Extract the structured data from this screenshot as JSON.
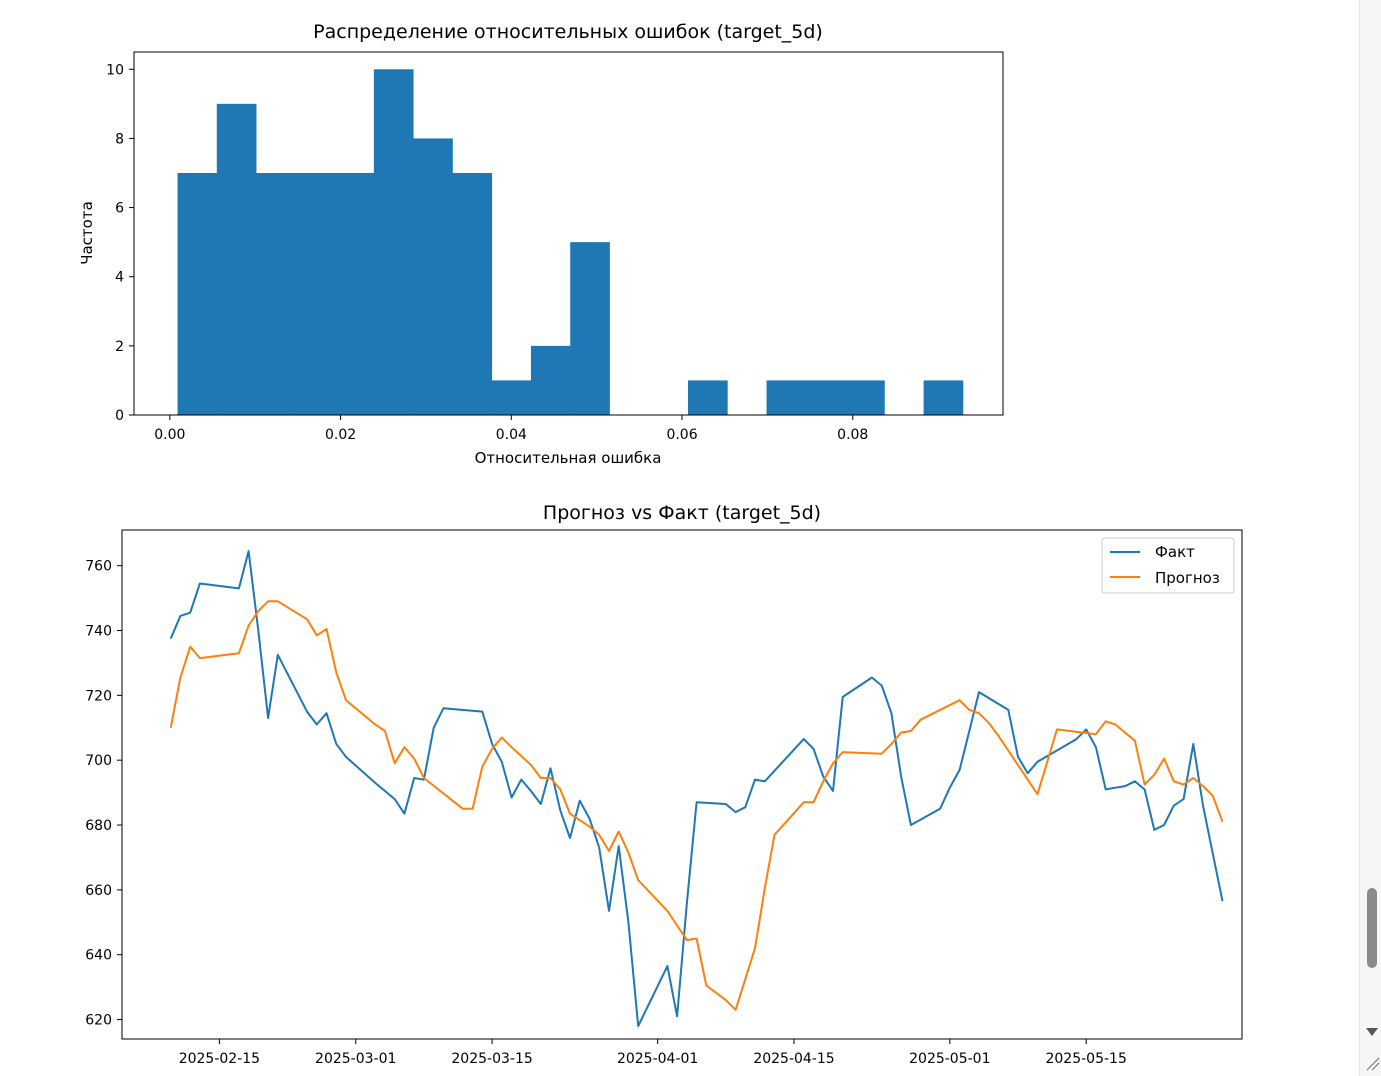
{
  "chart_data": [
    {
      "type": "bar",
      "title": "Распределение относительных ошибок (target_5d)",
      "xlabel": "Относительная ошибка",
      "ylabel": "Частота",
      "xlim": [
        -0.0042,
        0.0976
      ],
      "ylim": [
        0,
        10.5
      ],
      "xticks": [
        "0.00",
        "0.02",
        "0.04",
        "0.06",
        "0.08"
      ],
      "xtick_values": [
        0.0,
        0.02,
        0.04,
        0.06,
        0.08
      ],
      "yticks": [
        "0",
        "2",
        "4",
        "6",
        "8",
        "10"
      ],
      "ytick_values": [
        0,
        2,
        4,
        6,
        8,
        10
      ],
      "color": "#1f77b4",
      "bin_edges": [
        0.0009,
        0.0055,
        0.0101,
        0.0147,
        0.0193,
        0.0239,
        0.0285,
        0.0331,
        0.0377,
        0.0423,
        0.0469,
        0.0515,
        0.0561,
        0.0607,
        0.0653,
        0.0699,
        0.0745,
        0.0791,
        0.0837,
        0.0883,
        0.0929
      ],
      "counts": [
        7,
        9,
        7,
        7,
        7,
        10,
        8,
        7,
        1,
        2,
        5,
        0,
        0,
        1,
        0,
        1,
        1,
        1,
        0,
        1
      ],
      "grid": false
    },
    {
      "type": "line",
      "title": "Прогноз vs Факт (target_5d)",
      "xlabel": "",
      "ylabel": "",
      "xlim": [
        "2025-02-05",
        "2025-05-31"
      ],
      "ylim": [
        614,
        771
      ],
      "xticks": [
        "2025-02-15",
        "2025-03-01",
        "2025-03-15",
        "2025-04-01",
        "2025-04-15",
        "2025-05-01",
        "2025-05-15"
      ],
      "yticks": [
        "620",
        "640",
        "660",
        "680",
        "700",
        "720",
        "740",
        "760"
      ],
      "ytick_values": [
        620,
        640,
        660,
        680,
        700,
        720,
        740,
        760
      ],
      "legend": "upper right",
      "grid": false,
      "series": [
        {
          "name": "Факт",
          "color": "#1f77b4",
          "points": [
            [
              "2025-02-10",
              737.5
            ],
            [
              "2025-02-11",
              744.5
            ],
            [
              "2025-02-12",
              745.5
            ],
            [
              "2025-02-13",
              754.5
            ],
            [
              "2025-02-17",
              753
            ],
            [
              "2025-02-18",
              764.5
            ],
            [
              "2025-02-19",
              740
            ],
            [
              "2025-02-20",
              713
            ],
            [
              "2025-02-21",
              732.5
            ],
            [
              "2025-02-24",
              715
            ],
            [
              "2025-02-25",
              711
            ],
            [
              "2025-02-26",
              714.5
            ],
            [
              "2025-02-27",
              705
            ],
            [
              "2025-02-28",
              701
            ],
            [
              "2025-03-03",
              693
            ],
            [
              "2025-03-04",
              690.5
            ],
            [
              "2025-03-05",
              688
            ],
            [
              "2025-03-06",
              683.5
            ],
            [
              "2025-03-07",
              694.5
            ],
            [
              "2025-03-08",
              694
            ],
            [
              "2025-03-09",
              710
            ],
            [
              "2025-03-10",
              716
            ],
            [
              "2025-03-14",
              715
            ],
            [
              "2025-03-15",
              705
            ],
            [
              "2025-03-16",
              699.5
            ],
            [
              "2025-03-17",
              688.5
            ],
            [
              "2025-03-18",
              694
            ],
            [
              "2025-03-19",
              690.5
            ],
            [
              "2025-03-20",
              686.5
            ],
            [
              "2025-03-21",
              697.5
            ],
            [
              "2025-03-22",
              684.5
            ],
            [
              "2025-03-23",
              676
            ],
            [
              "2025-03-24",
              687.5
            ],
            [
              "2025-03-25",
              682
            ],
            [
              "2025-03-26",
              673
            ],
            [
              "2025-03-27",
              653.5
            ],
            [
              "2025-03-28",
              673.5
            ],
            [
              "2025-03-29",
              650
            ],
            [
              "2025-03-30",
              618
            ],
            [
              "2025-04-02",
              636.5
            ],
            [
              "2025-04-03",
              621
            ],
            [
              "2025-04-04",
              656
            ],
            [
              "2025-04-05",
              687
            ],
            [
              "2025-04-08",
              686.5
            ],
            [
              "2025-04-09",
              684
            ],
            [
              "2025-04-10",
              685.5
            ],
            [
              "2025-04-11",
              694
            ],
            [
              "2025-04-12",
              693.5
            ],
            [
              "2025-04-16",
              706.5
            ],
            [
              "2025-04-17",
              703.5
            ],
            [
              "2025-04-18",
              695
            ],
            [
              "2025-04-19",
              690.5
            ],
            [
              "2025-04-20",
              719.5
            ],
            [
              "2025-04-23",
              725.5
            ],
            [
              "2025-04-24",
              723
            ],
            [
              "2025-04-25",
              714.5
            ],
            [
              "2025-04-26",
              695
            ],
            [
              "2025-04-27",
              680
            ],
            [
              "2025-04-30",
              685
            ],
            [
              "2025-05-01",
              691.5
            ],
            [
              "2025-05-02",
              697
            ],
            [
              "2025-05-04",
              721
            ],
            [
              "2025-05-07",
              715.5
            ],
            [
              "2025-05-08",
              701
            ],
            [
              "2025-05-09",
              696
            ],
            [
              "2025-05-10",
              699.5
            ],
            [
              "2025-05-14",
              706.5
            ],
            [
              "2025-05-15",
              709.5
            ],
            [
              "2025-05-16",
              704
            ],
            [
              "2025-05-17",
              691
            ],
            [
              "2025-05-18",
              691.5
            ],
            [
              "2025-05-19",
              692
            ],
            [
              "2025-05-20",
              693.5
            ],
            [
              "2025-05-21",
              691
            ],
            [
              "2025-05-22",
              678.5
            ],
            [
              "2025-05-23",
              680
            ],
            [
              "2025-05-24",
              686
            ],
            [
              "2025-05-25",
              688
            ],
            [
              "2025-05-26",
              705
            ],
            [
              "2025-05-27",
              686
            ],
            [
              "2025-05-29",
              656.5
            ]
          ]
        },
        {
          "name": "Прогноз",
          "color": "#ff7f0e",
          "points": [
            [
              "2025-02-10",
              710
            ],
            [
              "2025-02-11",
              725.5
            ],
            [
              "2025-02-12",
              735
            ],
            [
              "2025-02-13",
              731.5
            ],
            [
              "2025-02-17",
              733
            ],
            [
              "2025-02-18",
              741.5
            ],
            [
              "2025-02-19",
              746
            ],
            [
              "2025-02-20",
              749
            ],
            [
              "2025-02-21",
              749
            ],
            [
              "2025-02-24",
              743.5
            ],
            [
              "2025-02-25",
              738.5
            ],
            [
              "2025-02-26",
              740.5
            ],
            [
              "2025-02-27",
              727
            ],
            [
              "2025-02-28",
              718.5
            ],
            [
              "2025-03-03",
              711
            ],
            [
              "2025-03-04",
              709
            ],
            [
              "2025-03-05",
              699
            ],
            [
              "2025-03-06",
              704
            ],
            [
              "2025-03-07",
              700.5
            ],
            [
              "2025-03-08",
              694.5
            ],
            [
              "2025-03-12",
              685
            ],
            [
              "2025-03-13",
              685
            ],
            [
              "2025-03-14",
              698
            ],
            [
              "2025-03-15",
              703.5
            ],
            [
              "2025-03-16",
              707
            ],
            [
              "2025-03-17",
              704
            ],
            [
              "2025-03-19",
              698.5
            ],
            [
              "2025-03-20",
              694.5
            ],
            [
              "2025-03-21",
              694.5
            ],
            [
              "2025-03-22",
              691
            ],
            [
              "2025-03-23",
              683.5
            ],
            [
              "2025-03-25",
              679.5
            ],
            [
              "2025-03-26",
              677
            ],
            [
              "2025-03-27",
              672
            ],
            [
              "2025-03-28",
              678
            ],
            [
              "2025-03-29",
              671.5
            ],
            [
              "2025-03-30",
              663
            ],
            [
              "2025-04-02",
              653.5
            ],
            [
              "2025-04-03",
              649
            ],
            [
              "2025-04-04",
              644.5
            ],
            [
              "2025-04-05",
              645
            ],
            [
              "2025-04-06",
              630.5
            ],
            [
              "2025-04-08",
              626
            ],
            [
              "2025-04-09",
              623
            ],
            [
              "2025-04-11",
              642
            ],
            [
              "2025-04-12",
              660.5
            ],
            [
              "2025-04-13",
              677
            ],
            [
              "2025-04-16",
              687
            ],
            [
              "2025-04-17",
              687
            ],
            [
              "2025-04-18",
              693.5
            ],
            [
              "2025-04-19",
              699
            ],
            [
              "2025-04-20",
              702.5
            ],
            [
              "2025-04-24",
              702
            ],
            [
              "2025-04-25",
              705
            ],
            [
              "2025-04-26",
              708.5
            ],
            [
              "2025-04-27",
              709
            ],
            [
              "2025-04-28",
              712.5
            ],
            [
              "2025-05-02",
              718.5
            ],
            [
              "2025-05-03",
              715.5
            ],
            [
              "2025-05-04",
              714.5
            ],
            [
              "2025-05-05",
              711.5
            ],
            [
              "2025-05-06",
              707.5
            ],
            [
              "2025-05-10",
              689.5
            ],
            [
              "2025-05-12",
              709.5
            ],
            [
              "2025-05-16",
              708
            ],
            [
              "2025-05-17",
              712
            ],
            [
              "2025-05-18",
              711
            ],
            [
              "2025-05-19",
              708.5
            ],
            [
              "2025-05-20",
              706
            ],
            [
              "2025-05-21",
              692.5
            ],
            [
              "2025-05-22",
              695.5
            ],
            [
              "2025-05-23",
              700.5
            ],
            [
              "2025-05-24",
              693.5
            ],
            [
              "2025-05-25",
              692.5
            ],
            [
              "2025-05-26",
              694.5
            ],
            [
              "2025-05-27",
              692
            ],
            [
              "2025-05-28",
              689
            ],
            [
              "2025-05-29",
              681
            ]
          ]
        }
      ]
    }
  ]
}
